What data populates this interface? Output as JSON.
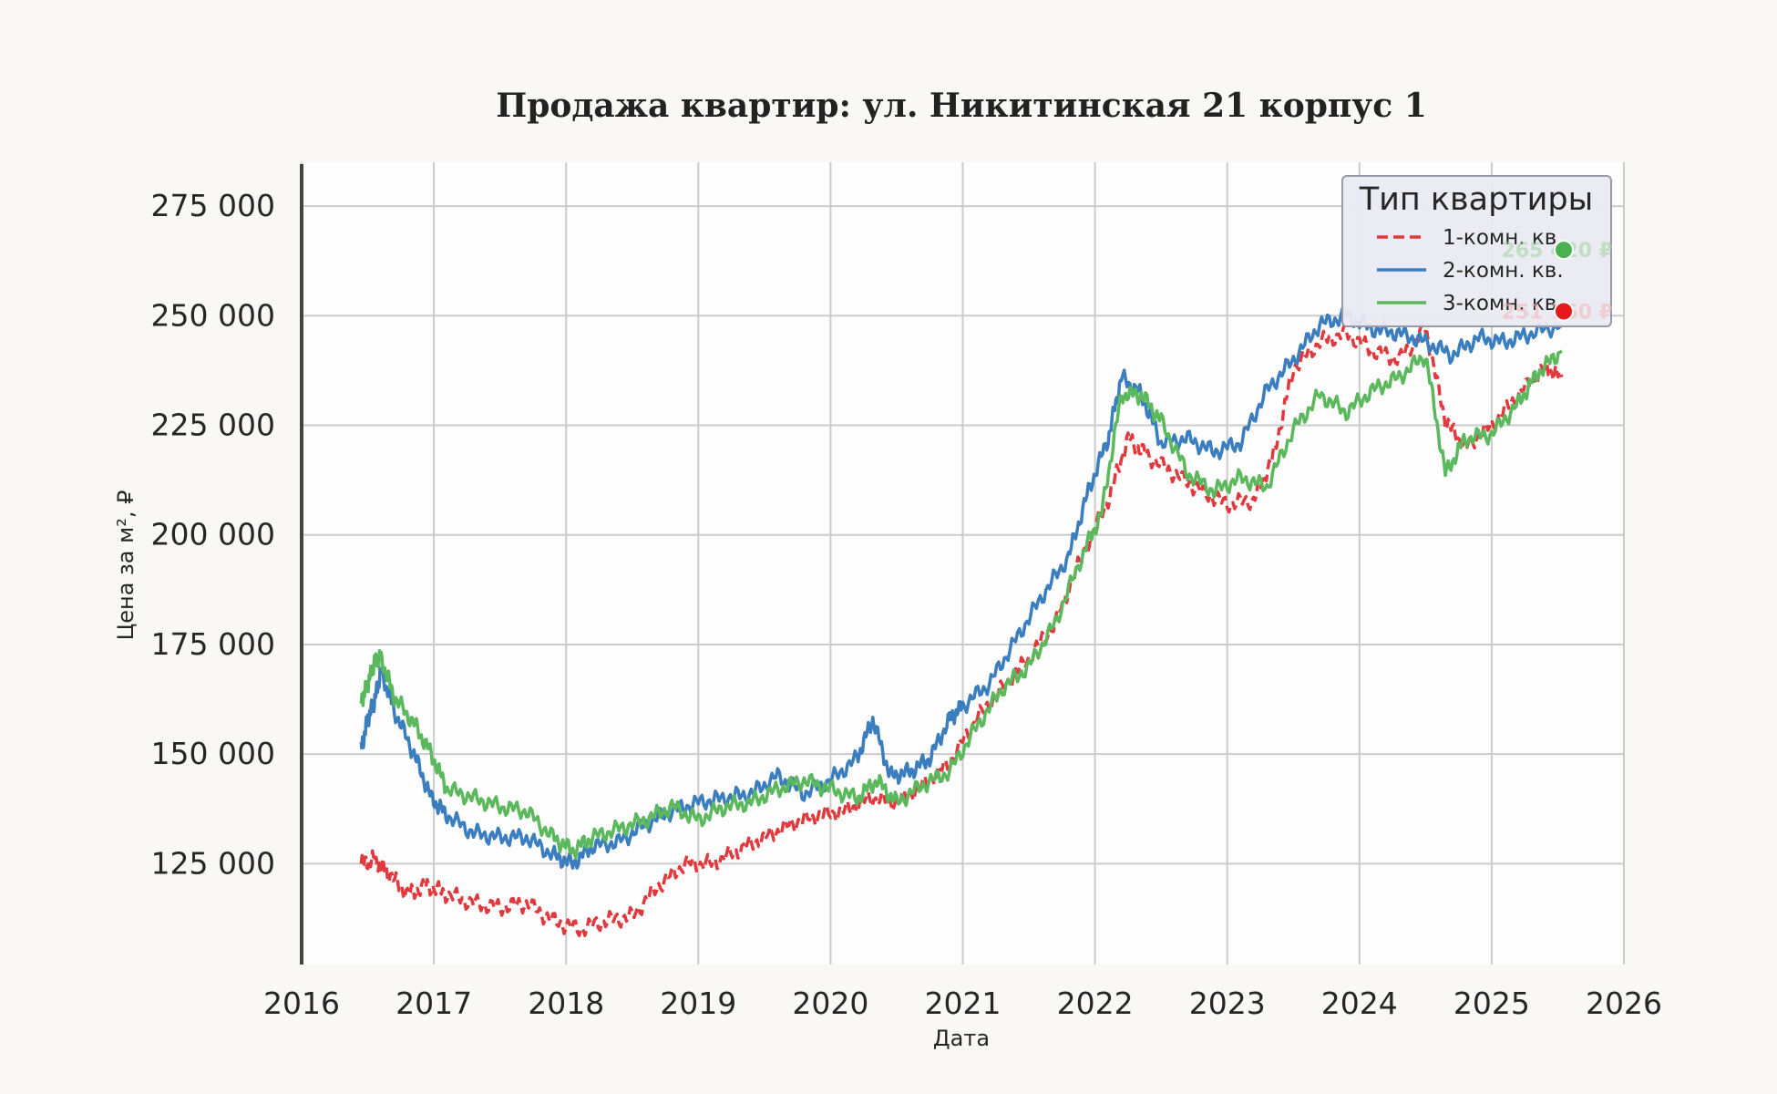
{
  "colors": {
    "background": "#f9f8f4",
    "plot_background": "#fdfdfd",
    "grid": "#cbcbcb",
    "series_1": "#e03a3e",
    "series_2": "#3a7ebf",
    "series_3": "#5cb85c",
    "marker_top": "#4caf50",
    "marker_bottom": "#e41a1c"
  },
  "chart_data": {
    "type": "line",
    "title": "Продажа квартир: ул. Никитинская 21 корпус 1",
    "xlabel": "Дата",
    "ylabel": "Цена за м², ₽",
    "xlim": [
      2016.0,
      2026.0
    ],
    "ylim": [
      102000,
      285000
    ],
    "x_ticks": [
      2016,
      2017,
      2018,
      2019,
      2020,
      2021,
      2022,
      2023,
      2024,
      2025,
      2026
    ],
    "x_tick_labels": [
      "2016",
      "2017",
      "2018",
      "2019",
      "2020",
      "2021",
      "2022",
      "2023",
      "2024",
      "2025",
      "2026"
    ],
    "y_ticks": [
      125000,
      150000,
      175000,
      200000,
      225000,
      250000,
      275000
    ],
    "y_tick_labels": [
      "125 000",
      "150 000",
      "175 000",
      "200 000",
      "225 000",
      "250 000",
      "275 000"
    ],
    "grid": true,
    "legend": {
      "title": "Тип квартиры",
      "placement": "top-right",
      "entries": [
        "1-комн. кв.",
        "2-комн. кв.",
        "3-комн. кв."
      ]
    },
    "series": [
      {
        "name": "1-комн. кв.",
        "style": "dashed",
        "x": [
          2016.45,
          2016.55,
          2016.65,
          2016.8,
          2016.95,
          2017.1,
          2017.3,
          2017.5,
          2017.7,
          2017.9,
          2018.1,
          2018.3,
          2018.5,
          2018.7,
          2018.9,
          2019.1,
          2019.3,
          2019.5,
          2019.7,
          2019.9,
          2020.1,
          2020.3,
          2020.5,
          2020.7,
          2020.9,
          2021.1,
          2021.3,
          2021.5,
          2021.7,
          2021.9,
          2022.1,
          2022.25,
          2022.4,
          2022.6,
          2022.8,
          2023.0,
          2023.2,
          2023.35,
          2023.5,
          2023.7,
          2023.9,
          2024.1,
          2024.3,
          2024.5,
          2024.65,
          2024.8,
          2025.0,
          2025.2,
          2025.4,
          2025.53
        ],
        "values": [
          125000,
          126000,
          123000,
          118000,
          120000,
          118000,
          116000,
          115000,
          116000,
          112000,
          110000,
          112000,
          113000,
          120000,
          125000,
          125000,
          128000,
          131000,
          134000,
          136000,
          137000,
          140000,
          139000,
          143000,
          148000,
          158000,
          165000,
          172000,
          180000,
          195000,
          208000,
          222000,
          218000,
          214000,
          210000,
          207000,
          208000,
          218000,
          238000,
          244000,
          246000,
          242000,
          240000,
          247000,
          226000,
          220000,
          225000,
          232000,
          238000,
          236000
        ]
      },
      {
        "name": "2-комн. кв.",
        "style": "solid",
        "x": [
          2016.45,
          2016.5,
          2016.55,
          2016.6,
          2016.7,
          2016.85,
          2016.98,
          2017.1,
          2017.3,
          2017.5,
          2017.7,
          2017.9,
          2018.05,
          2018.2,
          2018.4,
          2018.6,
          2018.8,
          2019.0,
          2019.2,
          2019.4,
          2019.6,
          2019.8,
          2020.0,
          2020.2,
          2020.32,
          2020.45,
          2020.6,
          2020.75,
          2020.9,
          2021.0,
          2021.2,
          2021.4,
          2021.6,
          2021.8,
          2021.95,
          2022.1,
          2022.2,
          2022.35,
          2022.5,
          2022.7,
          2022.9,
          2023.1,
          2023.3,
          2023.5,
          2023.7,
          2023.9,
          2024.1,
          2024.3,
          2024.5,
          2024.7,
          2024.9,
          2025.1,
          2025.3,
          2025.53
        ],
        "values": [
          151000,
          158000,
          162000,
          169000,
          160000,
          150000,
          140000,
          136000,
          132000,
          131000,
          131000,
          127000,
          125000,
          129000,
          130000,
          134000,
          137000,
          139000,
          140000,
          141000,
          145000,
          141000,
          144000,
          149000,
          158000,
          145000,
          146000,
          149000,
          158000,
          161000,
          166000,
          176000,
          186000,
          195000,
          210000,
          222000,
          236000,
          232000,
          221000,
          222000,
          219000,
          221000,
          233000,
          240000,
          248000,
          250000,
          247000,
          246000,
          244000,
          241000,
          245000,
          244000,
          246000,
          248000
        ]
      },
      {
        "name": "3-комн. кв.",
        "style": "solid",
        "x": [
          2016.45,
          2016.5,
          2016.55,
          2016.6,
          2016.7,
          2016.85,
          2016.98,
          2017.1,
          2017.3,
          2017.5,
          2017.7,
          2017.9,
          2018.05,
          2018.2,
          2018.4,
          2018.6,
          2018.8,
          2019.0,
          2019.2,
          2019.4,
          2019.6,
          2019.8,
          2020.0,
          2020.2,
          2020.35,
          2020.5,
          2020.7,
          2020.9,
          2021.1,
          2021.3,
          2021.5,
          2021.7,
          2021.9,
          2022.05,
          2022.2,
          2022.35,
          2022.5,
          2022.7,
          2022.9,
          2023.1,
          2023.3,
          2023.5,
          2023.7,
          2023.9,
          2024.1,
          2024.3,
          2024.5,
          2024.65,
          2024.8,
          2025.0,
          2025.2,
          2025.35,
          2025.53
        ],
        "values": [
          162000,
          166000,
          171000,
          172000,
          163000,
          157000,
          150000,
          142000,
          140000,
          138000,
          137000,
          131000,
          128000,
          131000,
          133000,
          135000,
          138000,
          135000,
          138000,
          139000,
          142000,
          144000,
          142000,
          140000,
          144000,
          139000,
          143000,
          146000,
          156000,
          165000,
          170000,
          180000,
          195000,
          205000,
          232000,
          232000,
          226000,
          214000,
          210000,
          213000,
          211000,
          224000,
          232000,
          228000,
          233000,
          236000,
          241000,
          214000,
          222000,
          223000,
          230000,
          237000,
          242000
        ]
      }
    ],
    "end_markers": [
      {
        "series": "3-комн. кв.",
        "value": 265000,
        "label": "265 420 ₽"
      },
      {
        "series": "1-комн. кв.",
        "value": 251000,
        "label": "251 760 ₽"
      }
    ]
  }
}
